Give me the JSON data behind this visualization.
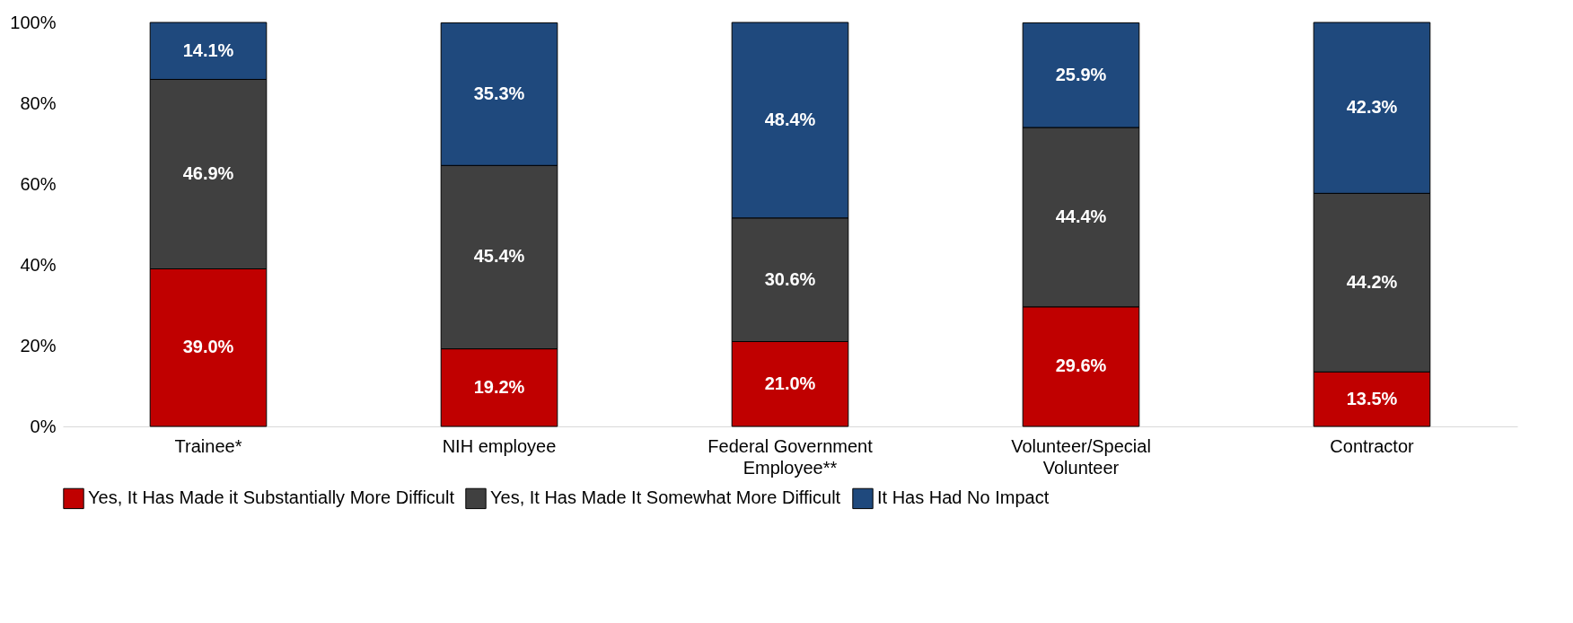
{
  "chart_data": {
    "type": "bar",
    "stacked": true,
    "categories": [
      "Trainee*",
      "NIH employee",
      "Federal Government Employee**",
      "Volunteer/Special Volunteer",
      "Contractor"
    ],
    "series": [
      {
        "name": "Yes, It Has Made it Substantially More Difficult",
        "color": "#c00000",
        "values": [
          39.0,
          19.2,
          21.0,
          29.6,
          13.5
        ],
        "value_labels": [
          "39.0%",
          "19.2%",
          "21.0%",
          "29.6%",
          "13.5%"
        ]
      },
      {
        "name": "Yes, It Has Made It Somewhat More Difficult",
        "color": "#404040",
        "values": [
          46.9,
          45.4,
          30.6,
          44.4,
          44.2
        ],
        "value_labels": [
          "46.9%",
          "45.4%",
          "30.6%",
          "44.4%",
          "44.2%"
        ]
      },
      {
        "name": "It Has Had No Impact",
        "color": "#1f497d",
        "values": [
          14.1,
          35.3,
          48.4,
          25.9,
          42.3
        ],
        "value_labels": [
          "14.1%",
          "35.3%",
          "48.4%",
          "25.9%",
          "42.3%"
        ]
      }
    ],
    "ylim": [
      0,
      100
    ],
    "yticks": [
      {
        "value": 0,
        "label": "0%"
      },
      {
        "value": 20,
        "label": "20%"
      },
      {
        "value": 40,
        "label": "40%"
      },
      {
        "value": 60,
        "label": "60%"
      },
      {
        "value": 80,
        "label": "80%"
      },
      {
        "value": 100,
        "label": "100%"
      }
    ],
    "grid": false,
    "legend": "bottom"
  }
}
